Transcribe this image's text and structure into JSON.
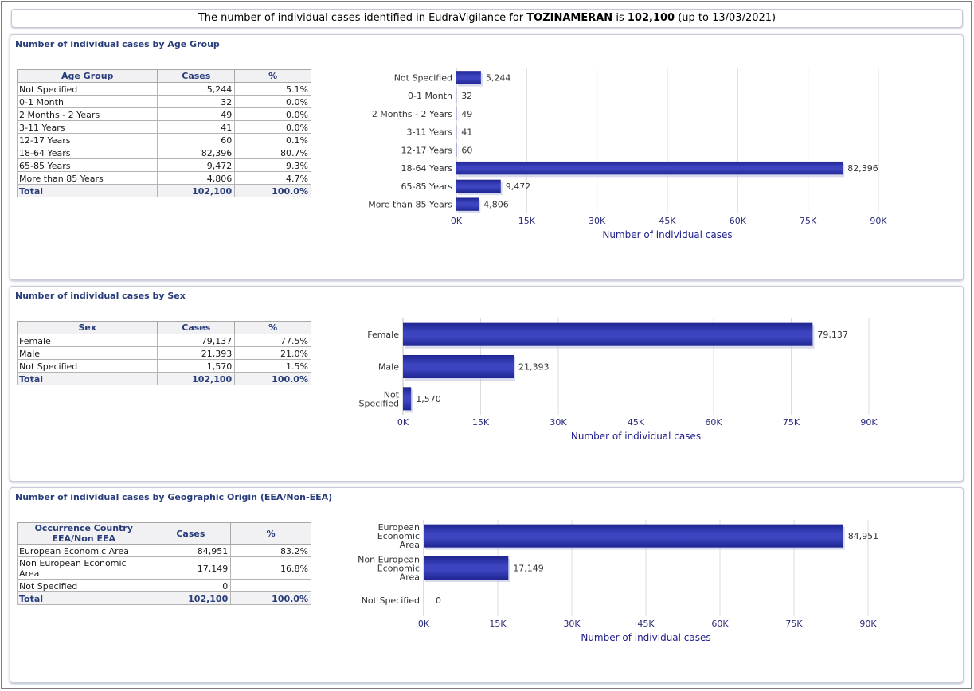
{
  "banner": {
    "prefix": "The number of individual cases identified in EudraVigilance for",
    "product": "TOZINAMERAN",
    "middle": "is",
    "total": "102,100",
    "suffix": "(up to 13/03/2021)"
  },
  "colors": {
    "bar": "#1f2590",
    "bar_highlight": "#3c44c0",
    "title": "#283c7a",
    "axis_text": "#2a2a7a",
    "axis_title": "#1e1e8a"
  },
  "age": {
    "title": "Number of individual cases by Age Group",
    "headers": [
      "Age Group",
      "Cases",
      "%"
    ],
    "rows": [
      [
        "Not Specified",
        "5,244",
        "5.1%"
      ],
      [
        "0-1 Month",
        "32",
        "0.0%"
      ],
      [
        "2 Months - 2 Years",
        "49",
        "0.0%"
      ],
      [
        "3-11 Years",
        "41",
        "0.0%"
      ],
      [
        "12-17 Years",
        "60",
        "0.1%"
      ],
      [
        "18-64 Years",
        "82,396",
        "80.7%"
      ],
      [
        "65-85 Years",
        "9,472",
        "9.3%"
      ],
      [
        "More than 85 Years",
        "4,806",
        "4.7%"
      ]
    ],
    "total": [
      "Total",
      "102,100",
      "100.0%"
    ]
  },
  "sex": {
    "title": "Number of individual cases by Sex",
    "headers": [
      "Sex",
      "Cases",
      "%"
    ],
    "rows": [
      [
        "Female",
        "79,137",
        "77.5%"
      ],
      [
        "Male",
        "21,393",
        "21.0%"
      ],
      [
        "Not Specified",
        "1,570",
        "1.5%"
      ]
    ],
    "total": [
      "Total",
      "102,100",
      "100.0%"
    ]
  },
  "geo": {
    "title": "Number of individual cases by Geographic Origin (EEA/Non-EEA)",
    "headers": [
      "Occurrence Country EEA/Non EEA",
      "Cases",
      "%"
    ],
    "rows": [
      [
        "European Economic Area",
        "84,951",
        "83.2%"
      ],
      [
        "Non European Economic Area",
        "17,149",
        "16.8%"
      ],
      [
        "Not Specified",
        "0",
        ""
      ]
    ],
    "total": [
      "Total",
      "102,100",
      "100.0%"
    ]
  },
  "chart_data": [
    {
      "type": "bar",
      "orientation": "horizontal",
      "categories": [
        "Not Specified",
        "0-1 Month",
        "2 Months - 2 Years",
        "3-11 Years",
        "12-17 Years",
        "18-64 Years",
        "65-85 Years",
        "More than 85 Years"
      ],
      "values": [
        5244,
        32,
        49,
        41,
        60,
        82396,
        9472,
        4806
      ],
      "value_labels": [
        "5,244",
        "32",
        "49",
        "41",
        "60",
        "82,396",
        "9,472",
        "4,806"
      ],
      "xticks": [
        "0K",
        "15K",
        "30K",
        "45K",
        "60K",
        "75K",
        "90K"
      ],
      "xlim": [
        0,
        90000
      ],
      "xlabel": "Number of individual cases",
      "ylabel": "",
      "grid": true
    },
    {
      "type": "bar",
      "orientation": "horizontal",
      "categories": [
        [
          "Female"
        ],
        [
          "Male"
        ],
        [
          "Not",
          "Specified"
        ]
      ],
      "values": [
        79137,
        21393,
        1570
      ],
      "value_labels": [
        "79,137",
        "21,393",
        "1,570"
      ],
      "xticks": [
        "0K",
        "15K",
        "30K",
        "45K",
        "60K",
        "75K",
        "90K"
      ],
      "xlim": [
        0,
        90000
      ],
      "xlabel": "Number of individual cases",
      "ylabel": "",
      "grid": true
    },
    {
      "type": "bar",
      "orientation": "horizontal",
      "categories": [
        [
          "European",
          "Economic",
          "Area"
        ],
        [
          "Non European",
          "Economic",
          "Area"
        ],
        [
          "Not Specified"
        ]
      ],
      "values": [
        84951,
        17149,
        0
      ],
      "value_labels": [
        "84,951",
        "17,149",
        "0"
      ],
      "xticks": [
        "0K",
        "15K",
        "30K",
        "45K",
        "60K",
        "75K",
        "90K"
      ],
      "xlim": [
        0,
        90000
      ],
      "xlabel": "Number of individual cases",
      "ylabel": "",
      "grid": true
    }
  ]
}
